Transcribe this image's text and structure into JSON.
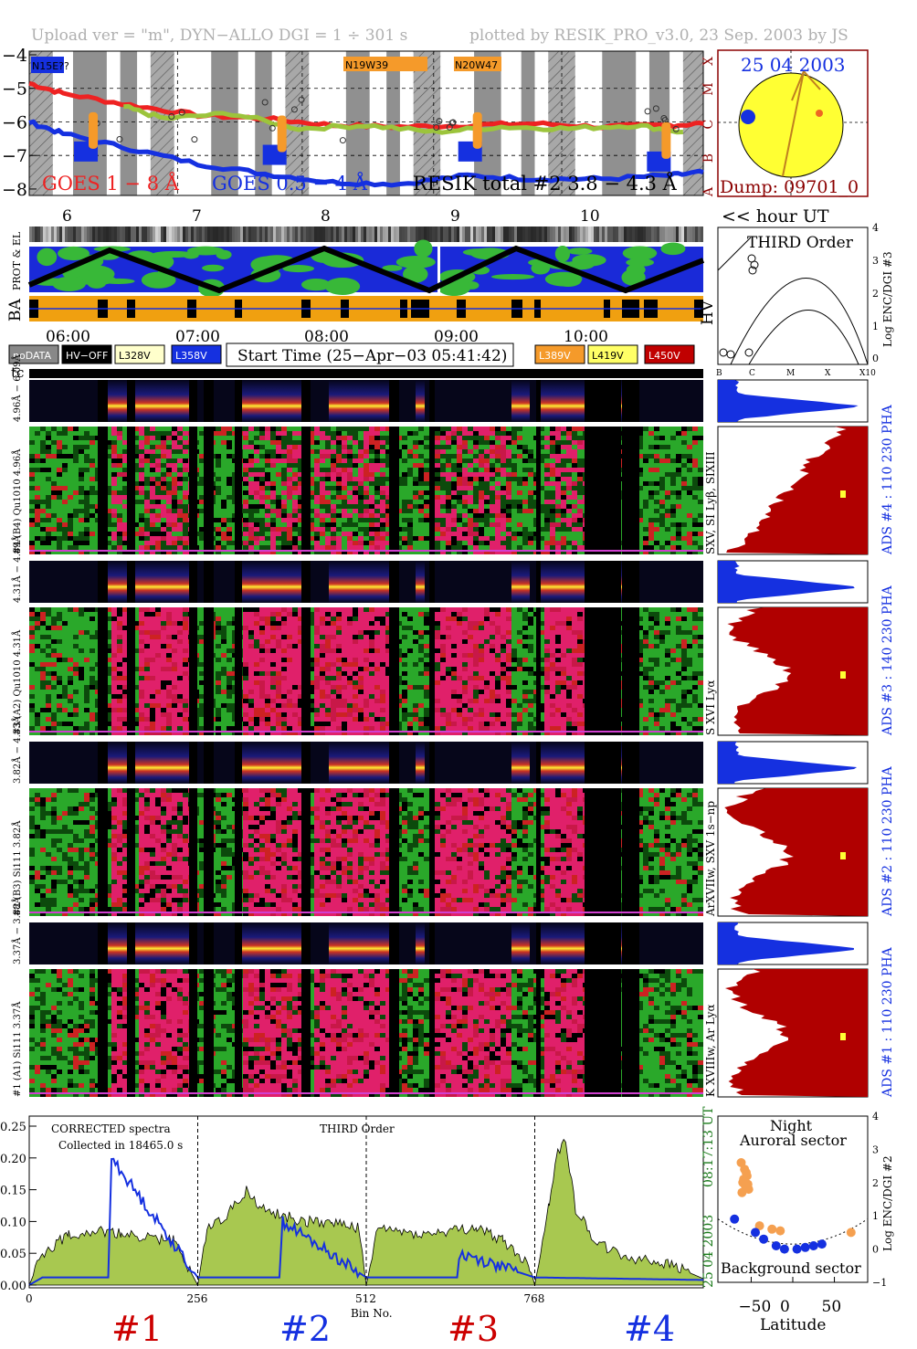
{
  "header": {
    "upload": "Upload ver = \"m\", DYN−ALLO DGI =   1 ÷ 301 s",
    "plotted": "plotted by RESIK_PRO_v3.0, 23 Sep. 2003 by JS"
  },
  "goes": {
    "y_ticks": [
      "−4",
      "−5",
      "−6",
      "−7",
      "−8"
    ],
    "class_labels": [
      "X",
      "M",
      "C",
      "B",
      "A"
    ],
    "label_goes18": "GOES 1 − 8 Å",
    "label_goes054": "GOES 0.5 − 4 Å",
    "label_resik": "RESIK total #2  3.8 − 4.3 Å",
    "regions": [
      {
        "label": "N15E??",
        "color": "#1530e0"
      },
      {
        "label": "N19W39",
        "color": "#f59a2a"
      },
      {
        "label": "N20W47",
        "color": "#f59a2a"
      }
    ],
    "colors": {
      "goes18": "#ee2222",
      "goes054": "#1530e0",
      "resik": "#9cc43c",
      "hatch": "#909090"
    }
  },
  "sun": {
    "date": "25 04 2003",
    "dump": "Dump: 09701_0",
    "color_disk": "#ffff33",
    "color_frame": "#8b0000"
  },
  "hour_axis": {
    "ticks": [
      "6",
      "7",
      "8",
      "9",
      "10"
    ],
    "label": "<< hour UT"
  },
  "panels": {
    "prot_el": "PROT & EL",
    "ba": "BA",
    "hv": "HV",
    "tc": "tc"
  },
  "time_axis": {
    "ticks": [
      "06:00",
      "07:00",
      "08:00",
      "09:00",
      "10:00"
    ]
  },
  "legend": [
    {
      "label": "noDATA",
      "bg": "#888888",
      "fg": "#ffffff"
    },
    {
      "label": "HV−OFF",
      "bg": "#000000",
      "fg": "#ffffff"
    },
    {
      "label": "L328V",
      "bg": "#ffffcc",
      "fg": "#000000"
    },
    {
      "label": "L358V",
      "bg": "#1530e0",
      "fg": "#ffffff"
    },
    {
      "label": "L389V",
      "bg": "#f59a2a",
      "fg": "#ffffff"
    },
    {
      "label": "L419V",
      "bg": "#ffff66",
      "fg": "#000000"
    },
    {
      "label": "L450V",
      "bg": "#c00000",
      "fg": "#ffffff"
    }
  ],
  "start_time": "Start Time (25−Apr−03 05:41:42)",
  "third_order": {
    "title": "THIRD Order",
    "ylabel": "Log ENC/DGI #3",
    "y_ticks": [
      "4",
      "3",
      "2",
      "1",
      "0"
    ],
    "x_ticks": [
      "B",
      "C",
      "M",
      "X",
      "X10"
    ]
  },
  "channels": [
    {
      "id": 4,
      "label_pha": "4.96Å − 6.09Å",
      "label_spec": "#4 (B4) Qu1010 4.96Å",
      "ads": "ADS #4 :   110 230   PHA",
      "lines": "SXV, SI Lyβ, SIXIII"
    },
    {
      "id": 3,
      "label_pha": "4.31Å − 4.89Å",
      "label_spec": "#3 (A2) Qu1010 4.31Å",
      "ads": "ADS #3 :   140 230   PHA",
      "lines": "S XVI Lyα"
    },
    {
      "id": 2,
      "label_pha": "3.82Å − 4.33Å",
      "label_spec": "#2 (B3) Si111 3.82Å",
      "ads": "ADS #2 :   110 230   PHA",
      "lines": "ArXVIIw, SXV 1s−np"
    },
    {
      "id": 1,
      "label_pha": "3.37Å − 3.88Å",
      "label_spec": "#1 (A1) Si111 3.37Å",
      "ads": "ADS #1 :   110 230   PHA",
      "lines": "K XVIIIw, Ar Lyα"
    }
  ],
  "spectrum": {
    "label_corrected": "CORRECTED spectra",
    "label_collected": "Collected in 18465.0 s",
    "label_third": "THIRD Order",
    "xlabel": "Bin No.",
    "time": "08:17:13 UT",
    "date": "25 04 2003",
    "section_labels": [
      "#1",
      "#2",
      "#3",
      "#4"
    ],
    "section_colors": [
      "#cc0000",
      "#1530e0",
      "#cc0000",
      "#1530e0"
    ]
  },
  "chart_data": [
    {
      "type": "line",
      "title": "",
      "ylabel": "",
      "ylim": [
        -8,
        -4
      ],
      "y_ticks": [
        -4,
        -5,
        -6,
        -7,
        -8
      ],
      "series": [
        {
          "name": "GOES 1 − 8 Å",
          "x": [
            0,
            0.05,
            0.15,
            0.25,
            0.35,
            0.45,
            0.55,
            0.65,
            0.75,
            0.85,
            0.95,
            1.0
          ],
          "values": [
            -4.85,
            -5.15,
            -5.5,
            -5.8,
            -5.9,
            -6.1,
            -6.15,
            -6.1,
            -6.05,
            -6.15,
            -6.1,
            -6.05
          ]
        },
        {
          "name": "GOES 0.5 − 4 Å",
          "x": [
            0,
            0.05,
            0.15,
            0.25,
            0.35,
            0.45,
            0.55,
            0.65,
            0.75,
            0.85,
            0.95,
            1.0
          ],
          "values": [
            -6.0,
            -6.35,
            -6.8,
            -7.25,
            -7.55,
            -7.8,
            -7.85,
            -7.6,
            -7.7,
            -7.7,
            -7.6,
            -7.5
          ]
        },
        {
          "name": "RESIK total #2  3.8 − 4.3 Å",
          "x": [
            0.14,
            0.2,
            0.3,
            0.4,
            0.5,
            0.6,
            0.7,
            0.8,
            0.9,
            0.97
          ],
          "values": [
            -5.55,
            -5.9,
            -5.75,
            -6.2,
            -6.1,
            -6.3,
            -6.15,
            -6.2,
            -6.1,
            -6.3
          ]
        }
      ]
    },
    {
      "type": "area",
      "title": "",
      "xlabel": "Bin No.",
      "ylabel": "",
      "xlim": [
        0,
        1024
      ],
      "ylim": [
        0,
        0.25
      ],
      "x_ticks": [
        0,
        256,
        512,
        768
      ],
      "y_ticks": [
        0.0,
        0.05,
        0.1,
        0.15,
        0.2,
        0.25
      ],
      "series": [
        {
          "name": "CORRECTED spectra",
          "x": [
            0,
            20,
            60,
            100,
            140,
            180,
            220,
            256,
            270,
            300,
            330,
            350,
            380,
            420,
            460,
            500,
            512,
            530,
            560,
            600,
            640,
            680,
            720,
            760,
            768,
            790,
            800,
            815,
            830,
            860,
            900,
            940,
            980,
            1024
          ],
          "values": [
            0.0,
            0.05,
            0.08,
            0.085,
            0.08,
            0.075,
            0.07,
            0.0,
            0.09,
            0.11,
            0.15,
            0.12,
            0.11,
            0.1,
            0.1,
            0.09,
            0.0,
            0.09,
            0.085,
            0.08,
            0.085,
            0.09,
            0.07,
            0.03,
            0.0,
            0.13,
            0.2,
            0.23,
            0.12,
            0.07,
            0.045,
            0.04,
            0.03,
            0.01
          ]
        },
        {
          "name": "THIRD Order",
          "x": [
            0,
            20,
            120,
            125,
            256,
            380,
            385,
            512,
            650,
            655,
            768,
            900,
            1024
          ],
          "values": [
            0.0,
            0.012,
            0.012,
            0.2,
            0.012,
            0.012,
            0.1,
            0.012,
            0.012,
            0.05,
            0.012,
            0.01,
            0.008
          ]
        }
      ]
    },
    {
      "type": "scatter",
      "title": "",
      "xlabel": "Latitude",
      "ylabel": "Log ENC/DGI #2",
      "xlim": [
        -90,
        90
      ],
      "ylim": [
        -1,
        4
      ],
      "x_ticks": [
        -50,
        0,
        50
      ],
      "y_ticks": [
        -1,
        0,
        1,
        2,
        3,
        4
      ],
      "annotations": [
        "Night",
        "Auroral sector",
        "Background sector"
      ],
      "series": [
        {
          "name": "",
          "x": [
            -62,
            -58,
            -55,
            -60,
            -57,
            -53,
            -61,
            -56,
            -59,
            -54,
            -40,
            -25,
            -15,
            70
          ],
          "values": [
            2.6,
            2.4,
            2.2,
            2.0,
            1.9,
            1.8,
            1.7,
            2.3,
            2.1,
            1.95,
            0.7,
            0.6,
            0.55,
            0.5
          ]
        },
        {
          "name": "",
          "x": [
            -70,
            -45,
            -35,
            -20,
            -10,
            5,
            15,
            25,
            35
          ],
          "values": [
            0.9,
            0.5,
            0.3,
            0.1,
            0.0,
            0.0,
            0.05,
            0.1,
            0.15
          ]
        }
      ]
    }
  ]
}
